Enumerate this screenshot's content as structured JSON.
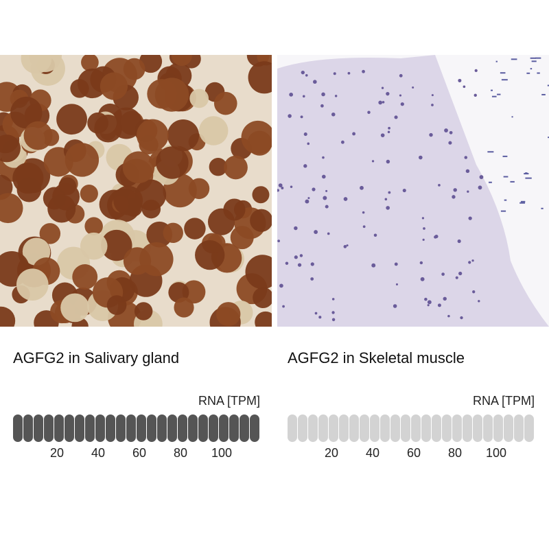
{
  "panels": [
    {
      "title": "AGFG2 in Salivary gland",
      "rna_label": "RNA [TPM]",
      "bar_count": 24,
      "filled_bars": 24,
      "fill_color": "#555555",
      "empty_color": "#d3d3d3",
      "ticks": [
        "20",
        "40",
        "60",
        "80",
        "100"
      ]
    },
    {
      "title": "AGFG2 in Skeletal muscle",
      "rna_label": "RNA [TPM]",
      "bar_count": 24,
      "filled_bars": 0,
      "fill_color": "#555555",
      "empty_color": "#d3d3d3",
      "ticks": [
        "20",
        "40",
        "60",
        "80",
        "100"
      ]
    }
  ]
}
